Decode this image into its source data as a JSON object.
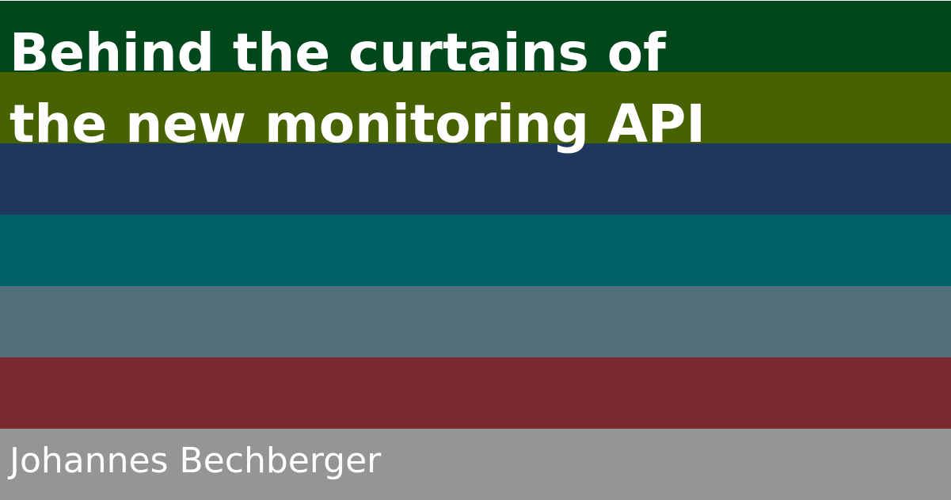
{
  "title": {
    "line1": "Behind the curtains of",
    "line2": "the new monitoring API"
  },
  "author": "Johannes Bechberger",
  "bands": {
    "colors": [
      "#00471b",
      "#476200",
      "#1e375c",
      "#00616b",
      "#53707a",
      "#7c2a30",
      "#959595"
    ]
  }
}
